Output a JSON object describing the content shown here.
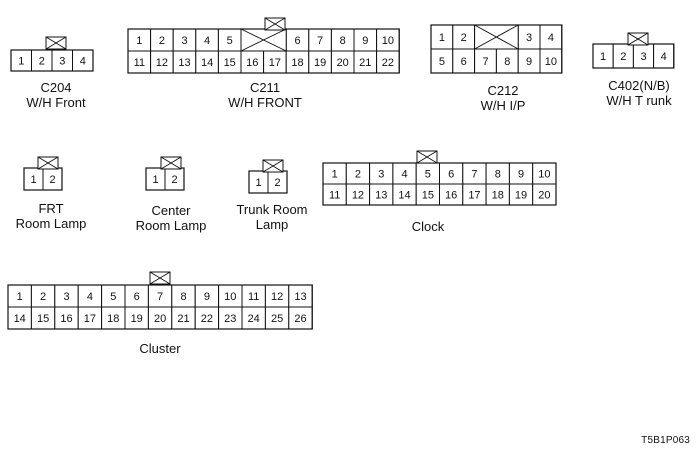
{
  "connectors": [
    {
      "id": "c204",
      "name": "C204",
      "desc": "W/H Front",
      "rows": [
        [
          "1",
          "2",
          "3",
          "4"
        ]
      ],
      "blank_cells": [],
      "lock_over_pin": "2"
    },
    {
      "id": "c211",
      "name": "C211",
      "desc": "W/H FRONT",
      "rows": [
        [
          "1",
          "2",
          "3",
          "4",
          "5",
          "",
          "",
          "6",
          "7",
          "8",
          "9",
          "10"
        ],
        [
          "11",
          "12",
          "13",
          "14",
          "15",
          "16",
          "17",
          "18",
          "19",
          "20",
          "21",
          "22"
        ]
      ],
      "blank_cells": [
        "X across top row columns 6-7"
      ],
      "lock_over_pin": "16"
    },
    {
      "id": "c212",
      "name": "C212",
      "desc": "W/H I/P",
      "rows": [
        [
          "1",
          "2",
          "",
          "",
          "3",
          "4"
        ],
        [
          "5",
          "6",
          "7",
          "8",
          "9",
          "10"
        ]
      ],
      "blank_cells": [
        "X across top row columns 3-4"
      ],
      "lock_over_pin": ""
    },
    {
      "id": "c402",
      "name": "C402(N/B)",
      "desc": "W/H T runk",
      "rows": [
        [
          "1",
          "2",
          "3",
          "4"
        ]
      ],
      "blank_cells": [],
      "lock_over_pin": "2-3"
    },
    {
      "id": "frt_room_lamp",
      "name": "FRT",
      "desc": "Room Lamp",
      "rows": [
        [
          "1",
          "2"
        ]
      ],
      "blank_cells": [],
      "lock_over_pin": "1-2"
    },
    {
      "id": "center_room_lamp",
      "name": "Center",
      "desc": "Room Lamp",
      "rows": [
        [
          "1",
          "2"
        ]
      ],
      "blank_cells": [],
      "lock_over_pin": "1-2"
    },
    {
      "id": "trunk_room_lamp",
      "name": "Trunk Room",
      "desc": "Lamp",
      "rows": [
        [
          "1",
          "2"
        ]
      ],
      "blank_cells": [],
      "lock_over_pin": "1-2"
    },
    {
      "id": "clock",
      "name": "Clock",
      "desc": "",
      "rows": [
        [
          "1",
          "2",
          "3",
          "4",
          "5",
          "6",
          "7",
          "8",
          "9",
          "10"
        ],
        [
          "11",
          "12",
          "13",
          "14",
          "15",
          "16",
          "17",
          "18",
          "19",
          "20"
        ]
      ],
      "blank_cells": [],
      "lock_over_pin": "5"
    },
    {
      "id": "cluster",
      "name": "Cluster",
      "desc": "",
      "rows": [
        [
          "1",
          "2",
          "3",
          "4",
          "5",
          "6",
          "7",
          "8",
          "9",
          "10",
          "11",
          "12",
          "13"
        ],
        [
          "14",
          "15",
          "16",
          "17",
          "18",
          "19",
          "20",
          "21",
          "22",
          "23",
          "24",
          "25",
          "26"
        ]
      ],
      "blank_cells": [],
      "lock_over_pin": "7"
    }
  ],
  "figure_code": "T5B1P063"
}
